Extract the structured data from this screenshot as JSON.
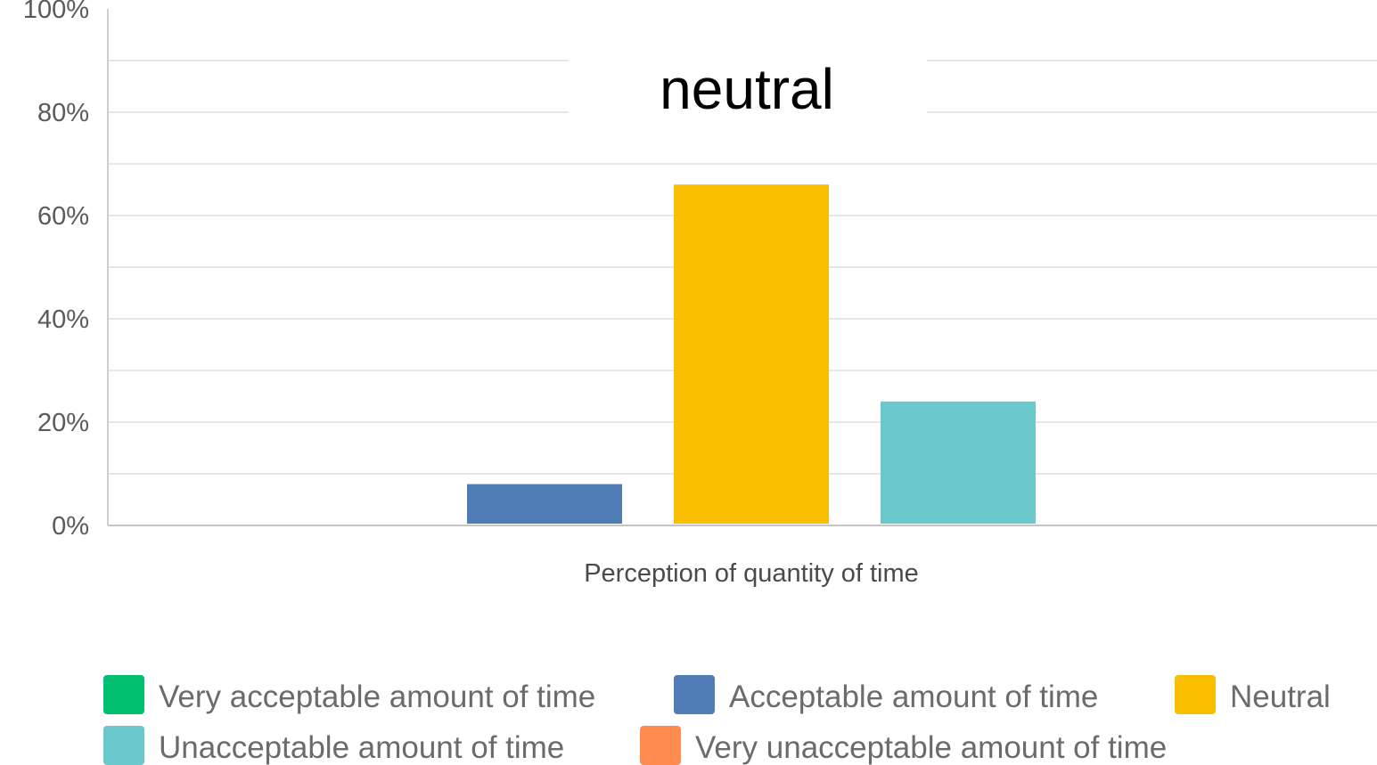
{
  "chart_data": {
    "type": "bar",
    "categories": [
      "Perception of quantity of time"
    ],
    "series": [
      {
        "name": "Very acceptable amount of time",
        "values": [
          0
        ],
        "color": "#00bf6f"
      },
      {
        "name": "Acceptable amount of time",
        "values": [
          8
        ],
        "color": "#507cb6"
      },
      {
        "name": "Neutral",
        "values": [
          66
        ],
        "color": "#f9be00"
      },
      {
        "name": "Unacceptable amount of time",
        "values": [
          24
        ],
        "color": "#6bc8cd"
      },
      {
        "name": "Very unacceptable amount of time",
        "values": [
          0
        ],
        "color": "#ff8b4f"
      }
    ],
    "ylim": [
      0,
      100
    ],
    "yticks": [
      "0%",
      "20%",
      "40%",
      "60%",
      "80%",
      "100%"
    ],
    "yunit": "%",
    "grid": true,
    "legend_position": "bottom",
    "annotation": "neutral"
  }
}
